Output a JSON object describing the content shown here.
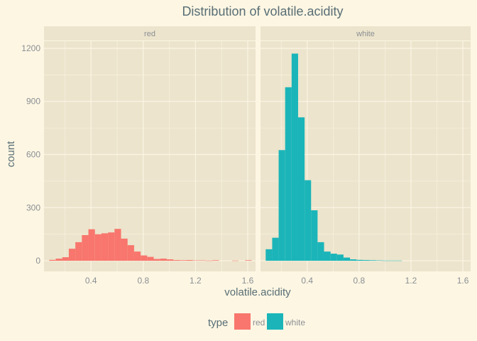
{
  "chart_data": {
    "type": "histogram",
    "title": "Distribution of  volatile.acidity",
    "xlabel": "volatile.acidity",
    "ylabel": "count",
    "xlim": [
      0.04,
      1.66
    ],
    "ylim": [
      -60,
      1240
    ],
    "x_ticks": [
      0.4,
      0.8,
      1.2,
      1.6
    ],
    "x_tick_labels": [
      "0.4",
      "0.8",
      "1.2",
      "1.6"
    ],
    "y_ticks": [
      0,
      300,
      600,
      900,
      1200
    ],
    "y_tick_labels": [
      "0",
      "300",
      "600",
      "900",
      "1200"
    ],
    "bin_width": 0.05,
    "panels": [
      {
        "name": "red",
        "strip_label": "red",
        "color": "#f8766d",
        "bin_starts": [
          0.08,
          0.13,
          0.18,
          0.23,
          0.28,
          0.33,
          0.38,
          0.43,
          0.48,
          0.53,
          0.58,
          0.63,
          0.68,
          0.73,
          0.78,
          0.83,
          0.88,
          0.93,
          0.98,
          1.03,
          1.08,
          1.13,
          1.18,
          1.23,
          1.28,
          1.33,
          1.38,
          1.43,
          1.48,
          1.53,
          1.58
        ],
        "counts": [
          5,
          12,
          20,
          68,
          105,
          145,
          178,
          150,
          155,
          160,
          180,
          125,
          88,
          52,
          30,
          22,
          10,
          12,
          8,
          4,
          3,
          4,
          2,
          2,
          1,
          3,
          0,
          0,
          1,
          0,
          3
        ]
      },
      {
        "name": "white",
        "strip_label": "white",
        "color": "#1bb5b9",
        "bin_starts": [
          0.08,
          0.13,
          0.18,
          0.23,
          0.28,
          0.33,
          0.38,
          0.43,
          0.48,
          0.53,
          0.58,
          0.63,
          0.68,
          0.73,
          0.78,
          0.83,
          0.88,
          0.93,
          0.98,
          1.03,
          1.08
        ],
        "counts": [
          65,
          130,
          625,
          980,
          1170,
          810,
          455,
          285,
          105,
          52,
          40,
          35,
          18,
          8,
          5,
          4,
          3,
          2,
          1,
          1,
          1
        ]
      }
    ],
    "legend": {
      "title": "type",
      "position": "bottom",
      "entries": [
        {
          "label": "red",
          "color": "#f8766d"
        },
        {
          "label": "white",
          "color": "#1bb5b9"
        }
      ]
    },
    "panel_background": "#ece4cc",
    "grid_color": "#fbf5e4"
  }
}
